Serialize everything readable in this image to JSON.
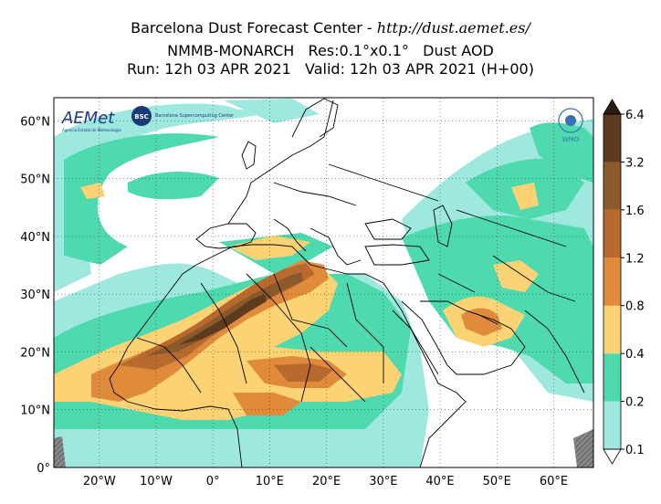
{
  "title": {
    "line1_prefix": "Barcelona Dust Forecast Center - ",
    "line1_url": "http://dust.aemet.es/",
    "line2": "NMMB-MONARCH   Res:0.1°x0.1°   Dust AOD",
    "line3": "Run: 12h 03 APR 2021   Valid: 12h 03 APR 2021 (H+00)"
  },
  "map": {
    "lon_range": [
      -28,
      67
    ],
    "lat_range": [
      0,
      64
    ],
    "lon_ticks": [
      {
        "value": -20,
        "label": "20°W"
      },
      {
        "value": -10,
        "label": "10°W"
      },
      {
        "value": 0,
        "label": "0°"
      },
      {
        "value": 10,
        "label": "10°E"
      },
      {
        "value": 20,
        "label": "20°E"
      },
      {
        "value": 30,
        "label": "30°E"
      },
      {
        "value": 40,
        "label": "40°E"
      },
      {
        "value": 50,
        "label": "50°E"
      },
      {
        "value": 60,
        "label": "60°E"
      }
    ],
    "lat_ticks": [
      {
        "value": 0,
        "label": "0°"
      },
      {
        "value": 10,
        "label": "10°N"
      },
      {
        "value": 20,
        "label": "20°N"
      },
      {
        "value": 30,
        "label": "30°N"
      },
      {
        "value": 40,
        "label": "40°N"
      },
      {
        "value": 50,
        "label": "50°N"
      },
      {
        "value": 60,
        "label": "60°N"
      }
    ],
    "grid": "dotted"
  },
  "colorbar": {
    "levels": [
      "0.1",
      "0.2",
      "0.4",
      "0.8",
      "1.2",
      "1.6",
      "3.2",
      "6.4"
    ],
    "colors": [
      "#9fe8df",
      "#4fd9ae",
      "#fcd374",
      "#e08a3c",
      "#b8692e",
      "#8a5a2c",
      "#5e3b1e"
    ],
    "extend_color": "#2e1d0e"
  },
  "logos": {
    "aemet": "AEMet",
    "aemet_sub": "Agencia Estatal de Meteorología",
    "bsc": "BSC",
    "bsc_name": "Barcelona Supercomputing Center",
    "wmo": "WMO"
  }
}
